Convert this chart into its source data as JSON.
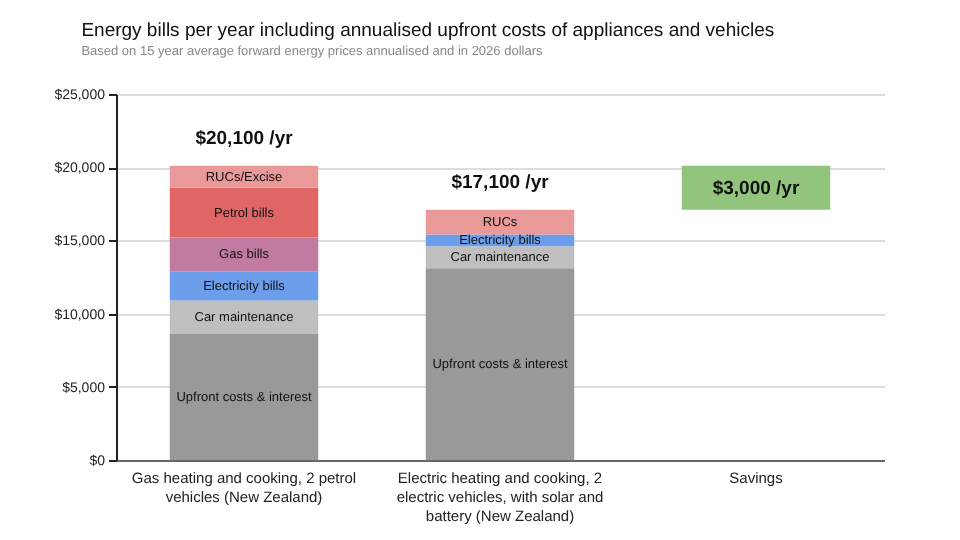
{
  "chart_data": {
    "type": "bar",
    "title": "Energy bills per year including annualised upfront costs of appliances and vehicles",
    "subtitle": "Based on 15 year average forward energy prices annualised and in 2026 dollars",
    "categories": [
      "Gas heating and cooking, 2 petrol vehicles (New Zealand)",
      "Electric heating and cooking, 2 electric vehicles, with solar and battery (New Zealand)",
      "Savings"
    ],
    "stacked": true,
    "series": [
      {
        "name": "Upfront costs & interest",
        "color": "#999999",
        "values": [
          8600,
          13100,
          null
        ]
      },
      {
        "name": "Car maintenance",
        "color": "#bfbfbf",
        "values": [
          2300,
          1500,
          null
        ]
      },
      {
        "name": "Electricity bills",
        "color": "#6d9eeb",
        "values": [
          2000,
          800,
          null
        ]
      },
      {
        "name": "Gas bills",
        "color": "#c27ba0",
        "values": [
          2300,
          null,
          null
        ]
      },
      {
        "name": "Petrol bills",
        "color": "#e06666",
        "values": [
          3400,
          null,
          null
        ]
      },
      {
        "name": "RUCs/Excise",
        "color": "#ea9999",
        "values": [
          1500,
          null,
          null
        ]
      },
      {
        "name": "RUCs",
        "color": "#ea9999",
        "values": [
          null,
          1700,
          null
        ]
      },
      {
        "color": "#93c47d",
        "values": [
          null,
          null,
          3000
        ],
        "base": [
          null,
          null,
          17100
        ],
        "value_labels": [
          null,
          null,
          "$3,000 /yr"
        ]
      }
    ],
    "totals": [
      "$20,100 /yr",
      "$17,100 /yr",
      null
    ],
    "ylim": [
      0,
      25000
    ],
    "yticks": [
      {
        "value": 0,
        "label": "$0"
      },
      {
        "value": 5000,
        "label": "$5,000"
      },
      {
        "value": 10000,
        "label": "$10,000"
      },
      {
        "value": 15000,
        "label": "$15,000"
      },
      {
        "value": 20000,
        "label": "$20,000"
      },
      {
        "value": 25000,
        "label": "$25,000"
      }
    ],
    "grid": "y",
    "legend": false
  }
}
